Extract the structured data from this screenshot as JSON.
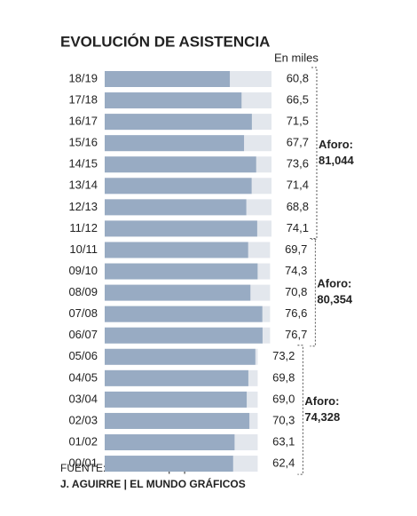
{
  "chart_data": {
    "type": "bar",
    "title": "EVOLUCIÓN DE ASISTENCIA",
    "unit_label": "En miles",
    "color": "#98abc3",
    "capacity_color": "#e3e7ed",
    "groups": [
      {
        "name": "Aforo:",
        "capacity": 81.044,
        "capacity_label": "81,044",
        "categories": [
          "18/19",
          "17/18",
          "16/17",
          "15/16",
          "14/15",
          "13/14",
          "12/13",
          "11/12"
        ],
        "values": [
          60.8,
          66.5,
          71.5,
          67.7,
          73.6,
          71.4,
          68.8,
          74.1
        ],
        "value_labels": [
          "60,8",
          "66,5",
          "71,5",
          "67,7",
          "73,6",
          "71,4",
          "68,8",
          "74,1"
        ]
      },
      {
        "name": "Aforo:",
        "capacity": 80.354,
        "capacity_label": "80,354",
        "categories": [
          "10/11",
          "09/10",
          "08/09",
          "07/08",
          "06/07"
        ],
        "values": [
          69.7,
          74.3,
          70.8,
          76.6,
          76.7
        ],
        "value_labels": [
          "69,7",
          "74,3",
          "70,8",
          "76,6",
          "76,7"
        ]
      },
      {
        "name": "Aforo:",
        "capacity": 74.328,
        "capacity_label": "74,328",
        "categories": [
          "05/06",
          "04/05",
          "03/04",
          "02/03",
          "01/02",
          "00/01"
        ],
        "values": [
          73.2,
          69.8,
          69.0,
          70.3,
          63.1,
          62.4
        ],
        "value_labels": [
          "73,2",
          "69,8",
          "69,0",
          "70,3",
          "63,1",
          "62,4"
        ]
      }
    ],
    "source": "FUENTE: Elaboración propia.",
    "credit": "J. AGUIRRE | EL MUNDO GRÁFICOS"
  }
}
